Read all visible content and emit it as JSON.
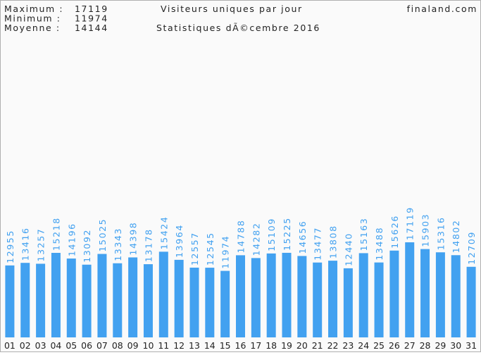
{
  "chart_data": {
    "type": "bar",
    "title": "Visiteurs uniques par jour",
    "subtitle": "Statistiques dÃ©cembre 2016",
    "site": "finaland.com",
    "stats": [
      {
        "label": "Maximum :",
        "value": 17119
      },
      {
        "label": "Minimum :",
        "value": 11974
      },
      {
        "label": "Moyenne :",
        "value": 14144
      }
    ],
    "color": "#42a1f0",
    "categories": [
      "01",
      "02",
      "03",
      "04",
      "05",
      "06",
      "07",
      "08",
      "09",
      "10",
      "11",
      "12",
      "13",
      "14",
      "15",
      "16",
      "17",
      "18",
      "19",
      "20",
      "21",
      "22",
      "23",
      "24",
      "25",
      "26",
      "27",
      "28",
      "29",
      "30",
      "31"
    ],
    "values": [
      12955,
      13416,
      13257,
      15218,
      14196,
      13092,
      15025,
      13343,
      14398,
      13178,
      15424,
      13964,
      12557,
      12545,
      11974,
      14788,
      14282,
      15109,
      15225,
      14656,
      13477,
      13808,
      12440,
      15163,
      13488,
      15626,
      17119,
      15903,
      15316,
      14802,
      12709
    ]
  }
}
